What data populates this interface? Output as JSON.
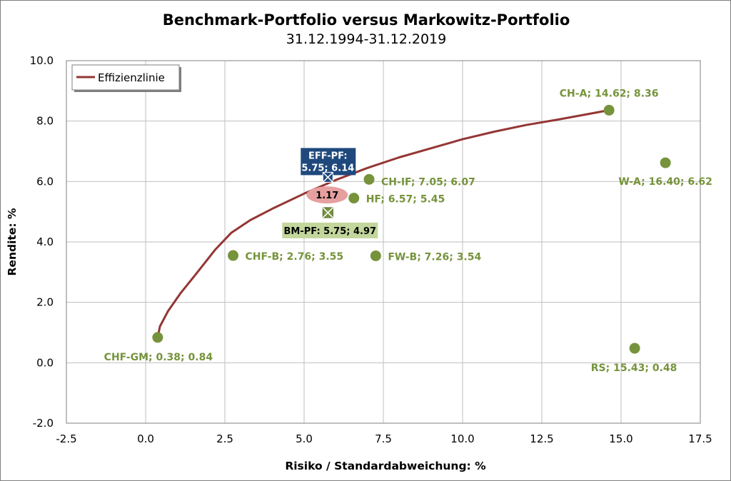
{
  "chart_data": {
    "type": "scatter",
    "title": "Benchmark-Portfolio versus Markowitz-Portfolio",
    "subtitle": "31.12.1994-31.12.2019",
    "xlabel": "Risiko / Standardabweichung: %",
    "ylabel": "Rendite: %",
    "xlim": [
      -2.5,
      17.5
    ],
    "ylim": [
      -2.0,
      10.0
    ],
    "xticks": [
      -2.5,
      0.0,
      2.5,
      5.0,
      7.5,
      10.0,
      12.5,
      15.0,
      17.5
    ],
    "xtick_labels": [
      "-2.5",
      "0.0",
      "2.5",
      "5.0",
      "7.5",
      "10.0",
      "12.5",
      "15.0",
      "17.5"
    ],
    "yticks": [
      -2.0,
      0.0,
      2.0,
      4.0,
      6.0,
      8.0,
      10.0
    ],
    "ytick_labels": [
      "-2.0",
      "0.0",
      "2.0",
      "4.0",
      "6.0",
      "8.0",
      "10.0"
    ],
    "grid": true,
    "legend": {
      "position": "top-left",
      "entries": [
        "Effizienzlinie"
      ]
    },
    "colors": {
      "frontier": "#943634",
      "points": "#76933c",
      "eff_box": "#1f497d",
      "bm_box": "#c3d69b",
      "diff_ellipse": "#e6a0a0"
    },
    "frontier": {
      "name": "Effizienzlinie",
      "x": [
        0.38,
        0.45,
        0.7,
        1.1,
        1.6,
        2.2,
        2.7,
        3.3,
        4.0,
        5.0,
        6.0,
        7.0,
        8.0,
        9.0,
        10.0,
        11.0,
        12.0,
        13.0,
        14.0,
        14.62
      ],
      "y": [
        0.84,
        1.2,
        1.7,
        2.3,
        2.95,
        3.75,
        4.3,
        4.72,
        5.1,
        5.6,
        6.05,
        6.45,
        6.8,
        7.1,
        7.4,
        7.65,
        7.87,
        8.05,
        8.24,
        8.36
      ]
    },
    "points": [
      {
        "name": "CH-A",
        "x": 14.62,
        "y": 8.36,
        "label": "CH-A; 14.62; 8.36"
      },
      {
        "name": "W-A",
        "x": 16.4,
        "y": 6.62,
        "label": "W-A; 16.40; 6.62"
      },
      {
        "name": "CH-IF",
        "x": 7.05,
        "y": 6.07,
        "label": "CH-IF; 7.05; 6.07"
      },
      {
        "name": "HF",
        "x": 6.57,
        "y": 5.45,
        "label": "HF; 6.57; 5.45"
      },
      {
        "name": "CHF-B",
        "x": 2.76,
        "y": 3.55,
        "label": "CHF-B; 2.76; 3.55"
      },
      {
        "name": "FW-B",
        "x": 7.26,
        "y": 3.54,
        "label": "FW-B; 7.26; 3.54"
      },
      {
        "name": "CHF-GM",
        "x": 0.38,
        "y": 0.84,
        "label": "CHF-GM; 0.38; 0.84"
      },
      {
        "name": "RS",
        "x": 15.43,
        "y": 0.48,
        "label": "RS; 15.43; 0.48"
      }
    ],
    "special_points": {
      "eff_pf": {
        "x": 5.75,
        "y": 6.14,
        "label_line1": "EFF-PF:",
        "label_line2": "5.75; 6.14"
      },
      "bm_pf": {
        "x": 5.75,
        "y": 4.97,
        "label": "BM-PF: 5.75; 4.97"
      },
      "difference": {
        "value": "1.17"
      }
    }
  }
}
